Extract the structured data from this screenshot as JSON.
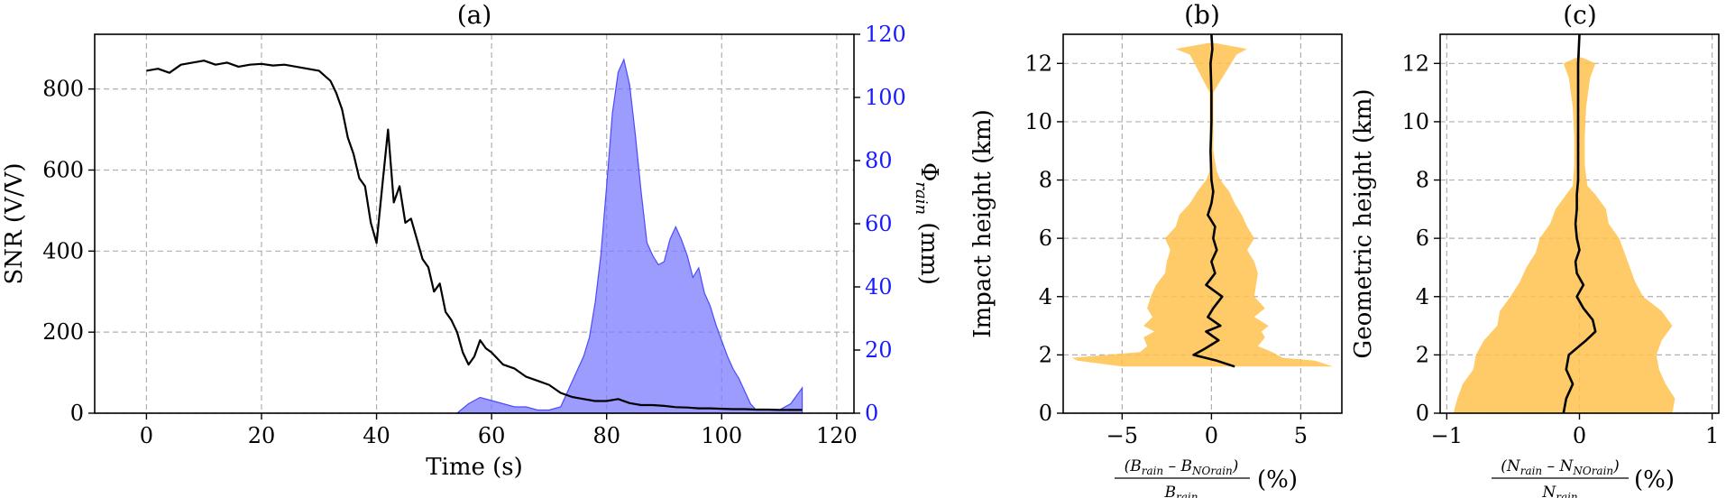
{
  "chart_data": [
    {
      "panel": "(a)",
      "type": "line",
      "title": "(a)",
      "xlabel": "Time (s)",
      "ylabel": "SNR (V/V)",
      "ylabel_right": "Φ_rain (mm)",
      "xlim": [
        -9,
        123
      ],
      "ylim": [
        0,
        935
      ],
      "ylim_right": [
        0,
        120
      ],
      "xticks": [
        "0",
        "20",
        "40",
        "60",
        "80",
        "100",
        "120"
      ],
      "yticks": [
        "0",
        "200",
        "400",
        "600",
        "800"
      ],
      "yticks_right": [
        "0",
        "20",
        "40",
        "60",
        "80",
        "100",
        "120"
      ],
      "grid": true,
      "colors": {
        "snr": "#000000",
        "rain_fill": "#7b7bff",
        "rain_edge": "#4b4bff",
        "axis_right": "#1a1aff"
      },
      "series": [
        {
          "axis": "left",
          "x": [
            0,
            2,
            4,
            6,
            8,
            10,
            12,
            14,
            16,
            18,
            20,
            22,
            24,
            26,
            28,
            30,
            32,
            33,
            34,
            35,
            36,
            37,
            38,
            39,
            40,
            41,
            42,
            43,
            44,
            45,
            46,
            47,
            48,
            49,
            50,
            51,
            52,
            53,
            54,
            55,
            56,
            57,
            58,
            59,
            60,
            62,
            64,
            66,
            68,
            70,
            72,
            74,
            76,
            78,
            80,
            82,
            84,
            86,
            88,
            90,
            92,
            94,
            96,
            98,
            100,
            102,
            104,
            106,
            108,
            110,
            112,
            114
          ],
          "values": [
            845,
            850,
            840,
            860,
            865,
            870,
            860,
            865,
            855,
            860,
            862,
            858,
            860,
            855,
            850,
            845,
            820,
            790,
            750,
            680,
            640,
            580,
            560,
            470,
            420,
            560,
            700,
            520,
            560,
            470,
            480,
            430,
            380,
            360,
            300,
            320,
            250,
            230,
            200,
            150,
            120,
            140,
            180,
            160,
            150,
            120,
            110,
            90,
            80,
            70,
            50,
            40,
            35,
            30,
            30,
            35,
            25,
            20,
            20,
            18,
            15,
            14,
            12,
            12,
            11,
            10,
            10,
            9,
            9,
            8,
            8,
            8
          ]
        },
        {
          "axis": "right",
          "x": [
            54,
            56,
            58,
            60,
            62,
            64,
            66,
            68,
            70,
            72,
            73,
            74,
            76,
            77,
            78,
            79,
            80,
            81,
            82,
            83,
            84,
            85,
            86,
            87,
            88,
            89,
            90,
            91,
            92,
            93,
            94,
            95,
            96,
            97,
            98,
            99,
            100,
            101,
            102,
            103,
            104,
            105,
            106,
            108,
            110,
            112,
            114
          ],
          "values": [
            0,
            3,
            5,
            4,
            3,
            2,
            2,
            1,
            1,
            2,
            6,
            10,
            18,
            24,
            35,
            50,
            72,
            95,
            108,
            112,
            104,
            88,
            70,
            54,
            50,
            47,
            48,
            55,
            59,
            55,
            50,
            43,
            46,
            38,
            34,
            28,
            23,
            18,
            14,
            11,
            7,
            3,
            1,
            1,
            1,
            3,
            8
          ]
        }
      ]
    },
    {
      "panel": "(b)",
      "type": "area",
      "title": "(b)",
      "xlabel_num": "(B_rain – B_NOrain)",
      "xlabel_den": "B_rain",
      "xlabel_unit": "(%)",
      "ylabel": "Impact height (km)",
      "xlim": [
        -8.3,
        7.3
      ],
      "ylim": [
        0,
        13
      ],
      "xticks": [
        "−5",
        "0",
        "5"
      ],
      "yticks": [
        "0",
        "2",
        "4",
        "6",
        "8",
        "10",
        "12"
      ],
      "grid": true,
      "colors": {
        "band": "#ffc14d",
        "mean": "#000000"
      },
      "band": {
        "y": [
          1.6,
          1.8,
          1.9,
          2.1,
          2.3,
          2.6,
          2.8,
          3.0,
          3.3,
          3.6,
          4.0,
          4.4,
          4.8,
          5.2,
          5.6,
          6.0,
          6.4,
          6.8,
          7.2,
          7.6,
          8.0,
          8.3,
          9.0,
          10.0,
          11.0,
          12.3,
          12.5,
          12.7
        ],
        "left": [
          -5.0,
          -7.5,
          -7.8,
          -4.0,
          -3.6,
          -3.8,
          -3.2,
          -3.8,
          -3.3,
          -3.6,
          -3.4,
          -3.1,
          -2.6,
          -2.5,
          -2.3,
          -2.6,
          -2.0,
          -1.8,
          -1.2,
          -0.8,
          -0.3,
          -0.1,
          -0.1,
          -0.1,
          -0.1,
          -1.2,
          -2.0,
          -0.2
        ],
        "right": [
          6.8,
          5.8,
          4.0,
          3.4,
          2.6,
          3.0,
          2.8,
          3.2,
          2.4,
          3.0,
          2.4,
          2.5,
          2.6,
          2.4,
          2.0,
          2.4,
          2.0,
          1.7,
          1.3,
          1.0,
          0.5,
          0.3,
          0.1,
          0.1,
          0.1,
          1.4,
          2.0,
          0.2
        ]
      },
      "mean": {
        "y": [
          1.6,
          1.8,
          2.0,
          2.2,
          2.5,
          2.8,
          3.0,
          3.3,
          3.6,
          4.0,
          4.4,
          4.8,
          5.2,
          5.6,
          6.0,
          6.4,
          6.8,
          7.2,
          7.6,
          8.0,
          9.0,
          10.0,
          11.0,
          12.0,
          12.5,
          13.0
        ],
        "x": [
          1.3,
          0.3,
          -1.0,
          -0.4,
          0.4,
          -0.3,
          0.5,
          -0.2,
          0.1,
          0.6,
          -0.3,
          0.2,
          0.0,
          0.3,
          0.1,
          0.2,
          -0.2,
          0.0,
          0.1,
          0.0,
          -0.05,
          0.0,
          0.0,
          -0.05,
          0.05,
          0.0
        ]
      }
    },
    {
      "panel": "(c)",
      "type": "area",
      "title": "(c)",
      "xlabel_num": "(N_rain – N_NOrain)",
      "xlabel_den": "N_rain",
      "xlabel_unit": "(%)",
      "ylabel": "Geometric height (km)",
      "xlim": [
        -1.05,
        1.05
      ],
      "ylim": [
        0,
        13
      ],
      "xticks": [
        "−1",
        "0",
        "1"
      ],
      "yticks": [
        "0",
        "2",
        "4",
        "6",
        "8",
        "10",
        "12"
      ],
      "grid": true,
      "colors": {
        "band": "#ffc14d",
        "mean": "#000000"
      },
      "band": {
        "y": [
          0.0,
          0.5,
          1.0,
          1.5,
          2.0,
          2.5,
          3.0,
          3.5,
          4.0,
          4.5,
          5.0,
          5.5,
          6.0,
          6.5,
          7.0,
          7.5,
          7.8,
          8.5,
          9.5,
          10.5,
          11.5,
          12.0,
          12.2
        ],
        "left": [
          -0.95,
          -0.92,
          -0.88,
          -0.8,
          -0.78,
          -0.72,
          -0.62,
          -0.6,
          -0.52,
          -0.45,
          -0.4,
          -0.33,
          -0.3,
          -0.22,
          -0.18,
          -0.1,
          -0.05,
          -0.04,
          -0.04,
          -0.05,
          -0.08,
          -0.12,
          -0.02
        ],
        "right": [
          0.7,
          0.72,
          0.65,
          0.6,
          0.58,
          0.62,
          0.7,
          0.62,
          0.48,
          0.42,
          0.38,
          0.34,
          0.3,
          0.22,
          0.2,
          0.12,
          0.06,
          0.04,
          0.04,
          0.05,
          0.08,
          0.12,
          0.02
        ]
      },
      "mean": {
        "y": [
          0.0,
          0.5,
          1.0,
          1.5,
          2.0,
          2.5,
          2.8,
          3.2,
          3.6,
          4.0,
          4.4,
          4.8,
          5.2,
          5.6,
          6.0,
          6.5,
          7.0,
          7.5,
          8.0,
          9.0,
          10.0,
          11.0,
          12.0,
          13.0
        ],
        "x": [
          -0.12,
          -0.1,
          -0.05,
          -0.1,
          -0.08,
          0.05,
          0.12,
          0.1,
          0.03,
          -0.02,
          0.03,
          -0.02,
          -0.03,
          0.0,
          -0.02,
          -0.03,
          -0.02,
          -0.02,
          -0.01,
          -0.01,
          -0.01,
          -0.01,
          -0.01,
          0.0
        ]
      }
    }
  ]
}
